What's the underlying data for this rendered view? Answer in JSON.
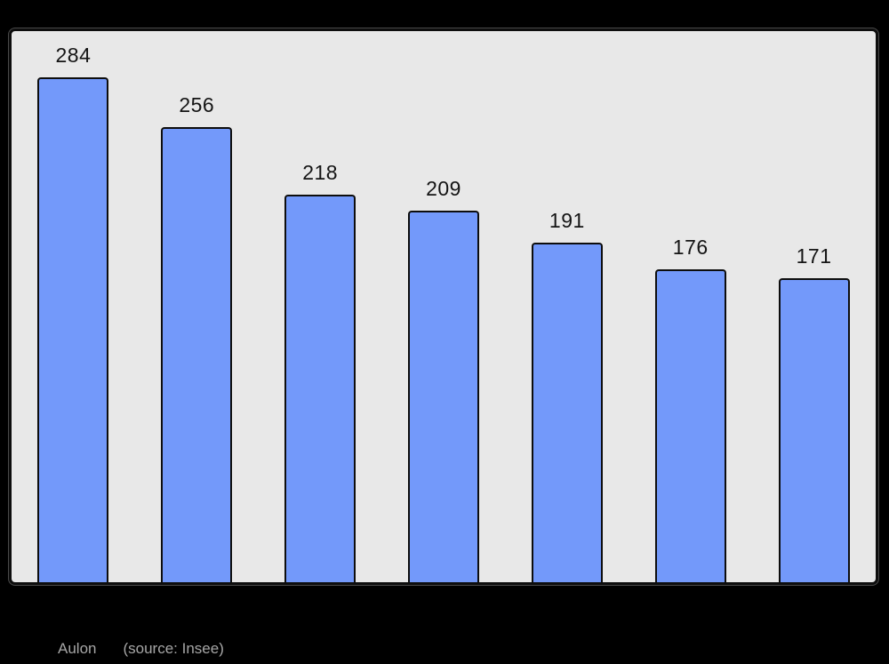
{
  "chart_data": {
    "type": "bar",
    "values": [
      284,
      256,
      218,
      209,
      191,
      176,
      171
    ],
    "data_labels": [
      "284",
      "256",
      "218",
      "209",
      "191",
      "176",
      "171"
    ],
    "title": "",
    "xlabel": "",
    "ylabel": "",
    "ylim": [
      0,
      310
    ],
    "grid": false,
    "legend": "none",
    "bar_color": "#7399fa",
    "bar_border_color": "#0d0d0d",
    "plot_background": "#e8e8e8",
    "outer_background": "#000000"
  },
  "caption": {
    "name": "Aulon",
    "source": "(source: Insee)"
  }
}
